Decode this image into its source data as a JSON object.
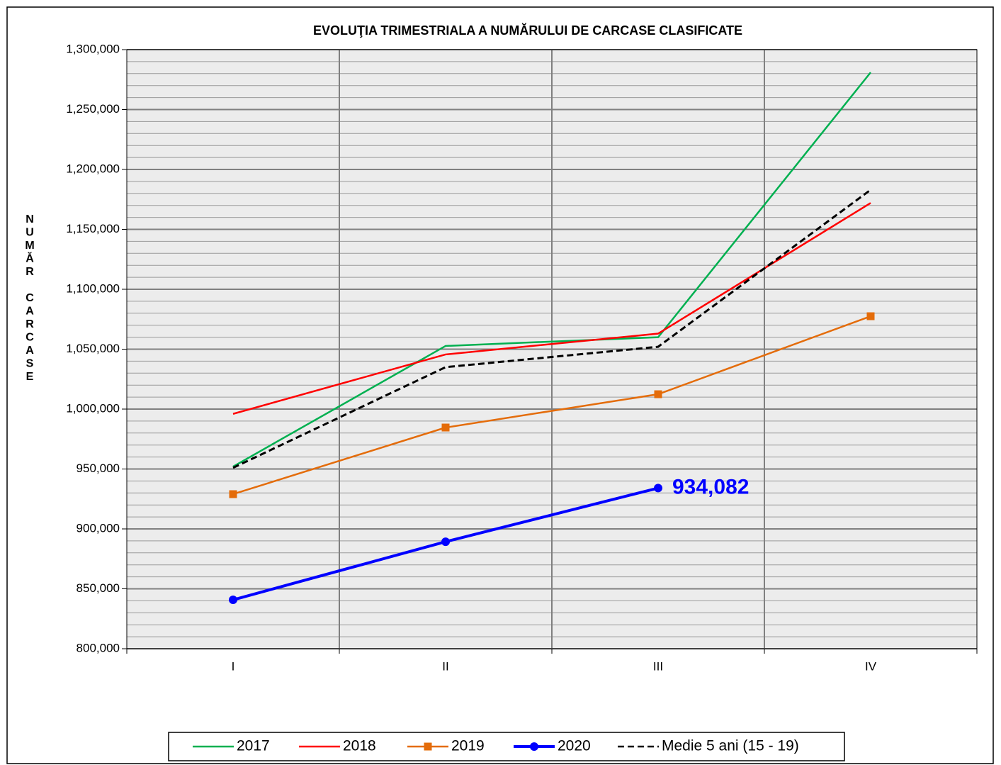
{
  "chart_data": {
    "type": "line",
    "title": "EVOLUŢIA TRIMESTRIALA  A NUMĂRULUI DE CARCASE CLASIFICATE",
    "ylabel": "NUMĂR  CARCASE",
    "categories": [
      "I",
      "II",
      "III",
      "IV"
    ],
    "series": [
      {
        "name": "2017",
        "color": "#00b050",
        "values": [
          952000,
          1052700,
          1060000,
          1281000
        ]
      },
      {
        "name": "2018",
        "color": "#ff0000",
        "values": [
          996000,
          1045600,
          1063000,
          1172000
        ]
      },
      {
        "name": "2019",
        "color": "#e46c0a",
        "marker": "square",
        "values": [
          929000,
          984600,
          1012400,
          1077500
        ]
      },
      {
        "name": "2020",
        "color": "#0000ff",
        "marker": "circle",
        "values": [
          840800,
          889300,
          934082,
          null
        ],
        "value_labels": [
          null,
          null,
          "934,082",
          null
        ]
      },
      {
        "name": "Medie 5 ani (15 - 19)",
        "color": "#000000",
        "dashed": true,
        "values": [
          951000,
          1035000,
          1052000,
          1183000
        ]
      }
    ],
    "ylim": [
      800000,
      1300000
    ],
    "yticks": [
      {
        "value": 800000,
        "label": "800,000"
      },
      {
        "value": 850000,
        "label": "850,000"
      },
      {
        "value": 900000,
        "label": "900,000"
      },
      {
        "value": 950000,
        "label": "950,000"
      },
      {
        "value": 1000000,
        "label": "1,000,000"
      },
      {
        "value": 1050000,
        "label": "1,050,000"
      },
      {
        "value": 1100000,
        "label": "1,100,000"
      },
      {
        "value": 1150000,
        "label": "1,150,000"
      },
      {
        "value": 1200000,
        "label": "1,200,000"
      },
      {
        "value": 1250000,
        "label": "1,250,000"
      },
      {
        "value": 1300000,
        "label": "1,300,000"
      }
    ],
    "minor_grid_step": 10000,
    "grid": true,
    "legend": "bottom"
  }
}
